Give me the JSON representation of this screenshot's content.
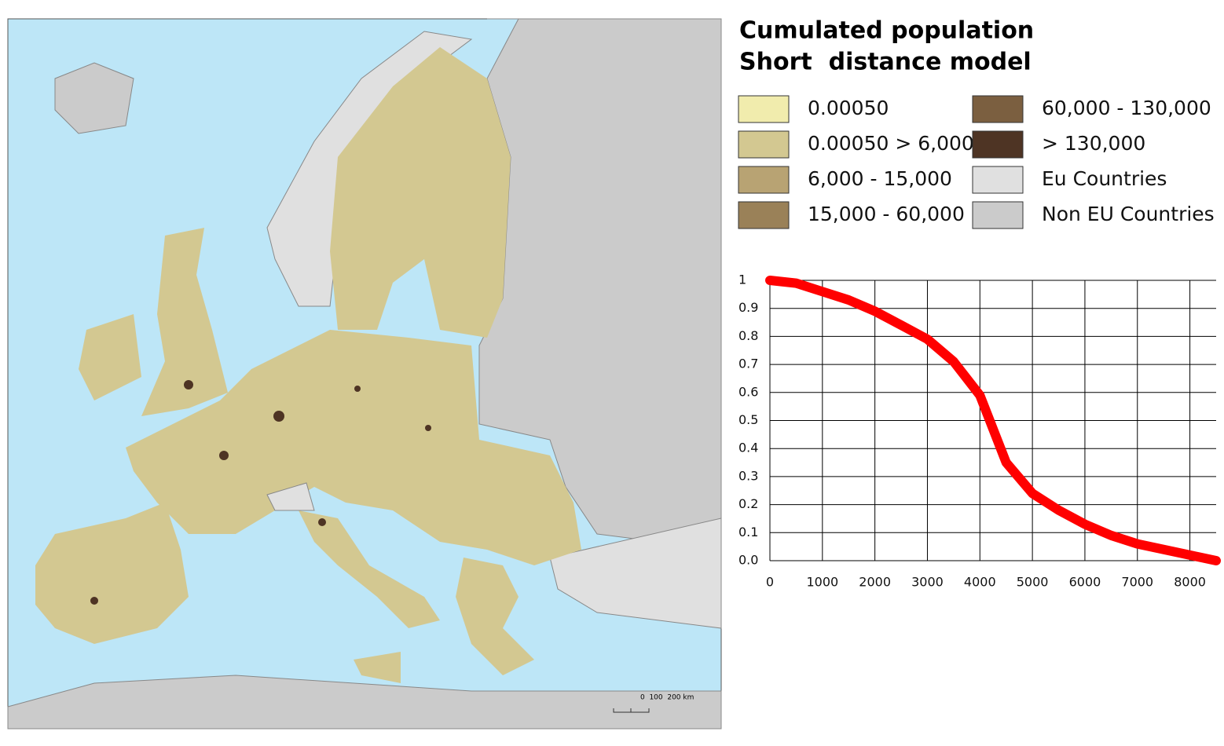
{
  "title": {
    "line1": "Cumulated population",
    "line2": "Short  distance model"
  },
  "legend": {
    "items": [
      {
        "label": "0.00050",
        "color": "#f1ecad"
      },
      {
        "label": "0.00050 > 6,000",
        "color": "#d3c891"
      },
      {
        "label": "6,000 - 15,000",
        "color": "#b8a373"
      },
      {
        "label": "15,000 - 60,000",
        "color": "#9a8158"
      },
      {
        "label": "60,000 - 130,000",
        "color": "#7b5f40"
      },
      {
        "label": "> 130,000",
        "color": "#4e3424"
      },
      {
        "label": "Eu Countries",
        "color": "#e0e0e0"
      },
      {
        "label": "Non EU Countries",
        "color": "#cbcbcb"
      }
    ]
  },
  "map": {
    "scale_bar": "0  100  200 km"
  },
  "chart_data": {
    "type": "line",
    "x": [
      0,
      500,
      1000,
      1500,
      2000,
      2500,
      3000,
      3500,
      4000,
      4500,
      5000,
      5500,
      6000,
      6500,
      7000,
      7500,
      8000,
      8500
    ],
    "series": [
      {
        "color": "#ff0000",
        "values": [
          1.0,
          0.99,
          0.96,
          0.93,
          0.89,
          0.84,
          0.79,
          0.71,
          0.59,
          0.35,
          0.24,
          0.18,
          0.13,
          0.09,
          0.06,
          0.04,
          0.02,
          0.0
        ]
      }
    ],
    "xlim": [
      0,
      8500
    ],
    "ylim": [
      0,
      1
    ],
    "xticks": [
      0,
      1000,
      2000,
      3000,
      4000,
      5000,
      6000,
      7000,
      8000
    ],
    "yticks": [
      {
        "value": 0,
        "label": "0.0"
      },
      0.1,
      0.2,
      0.3,
      0.4,
      0.5,
      0.6,
      0.7,
      0.8,
      0.9,
      1
    ],
    "grid": true
  }
}
